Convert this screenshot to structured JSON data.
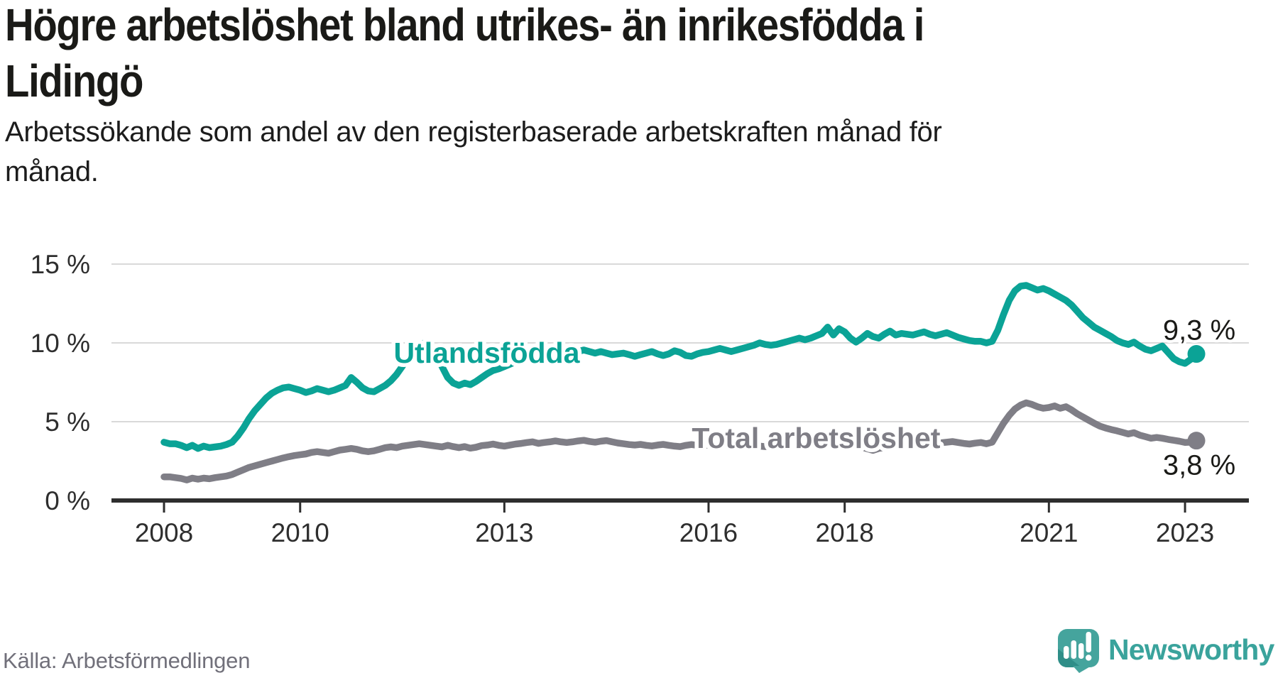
{
  "header": {
    "title": "Högre arbetslöshet bland utrikes- än inrikesfödda i\nLidingö",
    "subtitle": "Arbetssökande som andel av den registerbaserade arbetskraften månad för\nmånad."
  },
  "footer": {
    "source": "Källa: Arbetsförmedlingen",
    "brand": "Newsworthy"
  },
  "colors": {
    "accent_teal": "#0ba396",
    "line_gray": "#7f7e86",
    "gridline": "#d9d9d9",
    "axis": "#2e2e2e",
    "axis_text": "#2e2e2e",
    "value_text": "#1a1a17",
    "muted_text": "#71707a",
    "logo_teal": "#45a49d",
    "logo_fold": "#2f8e88",
    "brand_text": "#3aa39c"
  },
  "chart_data": {
    "type": "line",
    "title": "Högre arbetslöshet bland utrikes- än inrikesfödda i Lidingö",
    "subtitle": "Arbetssökande som andel av den registerbaserade arbetskraften månad för månad.",
    "xlabel": "",
    "ylabel": "",
    "x_unit": "monthly, Jan 2008 – Mar 2023",
    "x_start_year": 2008,
    "x_months_step": 1,
    "ylim": [
      0,
      15.8
    ],
    "grid": "horizontal",
    "legend_position": "inline-labels",
    "y_ticks": [
      {
        "label": "0 %",
        "value": 0
      },
      {
        "label": "5 %",
        "value": 5
      },
      {
        "label": "10 %",
        "value": 10
      },
      {
        "label": "15 %",
        "value": 15
      }
    ],
    "x_ticks": [
      {
        "label": "2008",
        "year": 2008
      },
      {
        "label": "2010",
        "year": 2010
      },
      {
        "label": "2013",
        "year": 2013
      },
      {
        "label": "2016",
        "year": 2016
      },
      {
        "label": "2018",
        "year": 2018
      },
      {
        "label": "2021",
        "year": 2021
      },
      {
        "label": "2023",
        "year": 2023
      }
    ],
    "series": [
      {
        "name": "Utlandsfödda",
        "color": "#0ba396",
        "end_value_label": "9,3 %",
        "end_label_offset": {
          "dx": 4,
          "dy": -20
        },
        "inline_label": {
          "text": "Utlandsfödda",
          "x_year": 2012.74,
          "value": 9.37
        },
        "values": [
          3.7,
          3.6,
          3.6,
          3.5,
          3.35,
          3.5,
          3.3,
          3.45,
          3.35,
          3.4,
          3.45,
          3.55,
          3.7,
          4.1,
          4.6,
          5.2,
          5.7,
          6.1,
          6.5,
          6.8,
          7.0,
          7.15,
          7.2,
          7.1,
          7.0,
          6.85,
          6.95,
          7.1,
          7.0,
          6.9,
          7.0,
          7.15,
          7.3,
          7.8,
          7.5,
          7.15,
          6.95,
          6.9,
          7.1,
          7.3,
          7.6,
          8.0,
          8.5,
          9.1,
          9.6,
          9.9,
          10.0,
          9.85,
          9.3,
          8.5,
          7.8,
          7.45,
          7.3,
          7.45,
          7.35,
          7.55,
          7.8,
          8.05,
          8.25,
          8.35,
          8.5,
          8.65,
          8.8,
          8.95,
          9.1,
          9.25,
          9.15,
          9.3,
          9.45,
          9.35,
          9.45,
          9.4,
          9.35,
          9.45,
          9.55,
          9.45,
          9.35,
          9.45,
          9.35,
          9.25,
          9.3,
          9.35,
          9.25,
          9.15,
          9.25,
          9.35,
          9.45,
          9.3,
          9.2,
          9.3,
          9.5,
          9.4,
          9.2,
          9.15,
          9.3,
          9.4,
          9.45,
          9.55,
          9.65,
          9.55,
          9.45,
          9.55,
          9.65,
          9.75,
          9.85,
          10.0,
          9.9,
          9.85,
          9.9,
          10.0,
          10.1,
          10.2,
          10.3,
          10.2,
          10.3,
          10.45,
          10.6,
          11.0,
          10.5,
          10.9,
          10.7,
          10.3,
          10.05,
          10.3,
          10.6,
          10.4,
          10.3,
          10.55,
          10.75,
          10.5,
          10.6,
          10.55,
          10.5,
          10.6,
          10.7,
          10.55,
          10.45,
          10.55,
          10.65,
          10.5,
          10.35,
          10.25,
          10.15,
          10.1,
          10.1,
          10.0,
          10.1,
          10.8,
          11.8,
          12.7,
          13.3,
          13.6,
          13.65,
          13.5,
          13.35,
          13.45,
          13.3,
          13.1,
          12.9,
          12.7,
          12.4,
          12.0,
          11.6,
          11.3,
          11.0,
          10.8,
          10.6,
          10.4,
          10.15,
          10.0,
          9.9,
          10.05,
          9.8,
          9.6,
          9.5,
          9.65,
          9.8,
          9.4,
          9.0,
          8.8,
          8.7,
          8.95,
          9.3
        ]
      },
      {
        "name": "Total arbetslöshet",
        "color": "#7f7e86",
        "end_value_label": "3,8 %",
        "end_label_offset": {
          "dx": 4,
          "dy": 48
        },
        "inline_label": {
          "text": "Total arbetslöshet",
          "x_year": 2017.58,
          "value": 3.96
        },
        "values": [
          1.5,
          1.5,
          1.45,
          1.4,
          1.3,
          1.42,
          1.35,
          1.42,
          1.38,
          1.45,
          1.5,
          1.55,
          1.65,
          1.8,
          1.95,
          2.1,
          2.2,
          2.3,
          2.4,
          2.5,
          2.6,
          2.7,
          2.78,
          2.85,
          2.9,
          2.95,
          3.05,
          3.1,
          3.05,
          3.0,
          3.1,
          3.2,
          3.25,
          3.3,
          3.25,
          3.15,
          3.1,
          3.15,
          3.25,
          3.35,
          3.4,
          3.35,
          3.45,
          3.5,
          3.55,
          3.6,
          3.55,
          3.5,
          3.45,
          3.4,
          3.5,
          3.42,
          3.35,
          3.42,
          3.32,
          3.38,
          3.48,
          3.52,
          3.58,
          3.5,
          3.45,
          3.52,
          3.58,
          3.62,
          3.68,
          3.72,
          3.62,
          3.68,
          3.72,
          3.78,
          3.72,
          3.68,
          3.72,
          3.78,
          3.82,
          3.75,
          3.7,
          3.76,
          3.8,
          3.72,
          3.65,
          3.6,
          3.55,
          3.52,
          3.56,
          3.5,
          3.46,
          3.52,
          3.56,
          3.5,
          3.45,
          3.42,
          3.5,
          3.55,
          3.5,
          3.46,
          3.52,
          3.56,
          3.6,
          3.55,
          3.5,
          3.46,
          3.52,
          3.56,
          3.5,
          3.45,
          3.42,
          3.46,
          3.52,
          3.56,
          3.6,
          3.55,
          3.5,
          3.55,
          3.6,
          3.65,
          3.6,
          3.54,
          3.5,
          3.55,
          3.6,
          3.55,
          3.48,
          3.38,
          3.28,
          3.18,
          3.3,
          3.36,
          3.42,
          3.48,
          3.54,
          3.58,
          3.62,
          3.66,
          3.7,
          3.64,
          3.6,
          3.66,
          3.7,
          3.74,
          3.68,
          3.62,
          3.58,
          3.64,
          3.68,
          3.6,
          3.7,
          4.3,
          4.9,
          5.4,
          5.8,
          6.05,
          6.2,
          6.1,
          5.95,
          5.85,
          5.9,
          6.0,
          5.85,
          5.95,
          5.75,
          5.5,
          5.3,
          5.1,
          4.9,
          4.72,
          4.6,
          4.5,
          4.42,
          4.32,
          4.22,
          4.3,
          4.15,
          4.05,
          3.95,
          4.0,
          3.95,
          3.88,
          3.82,
          3.76,
          3.68,
          3.7,
          3.8
        ]
      }
    ]
  }
}
